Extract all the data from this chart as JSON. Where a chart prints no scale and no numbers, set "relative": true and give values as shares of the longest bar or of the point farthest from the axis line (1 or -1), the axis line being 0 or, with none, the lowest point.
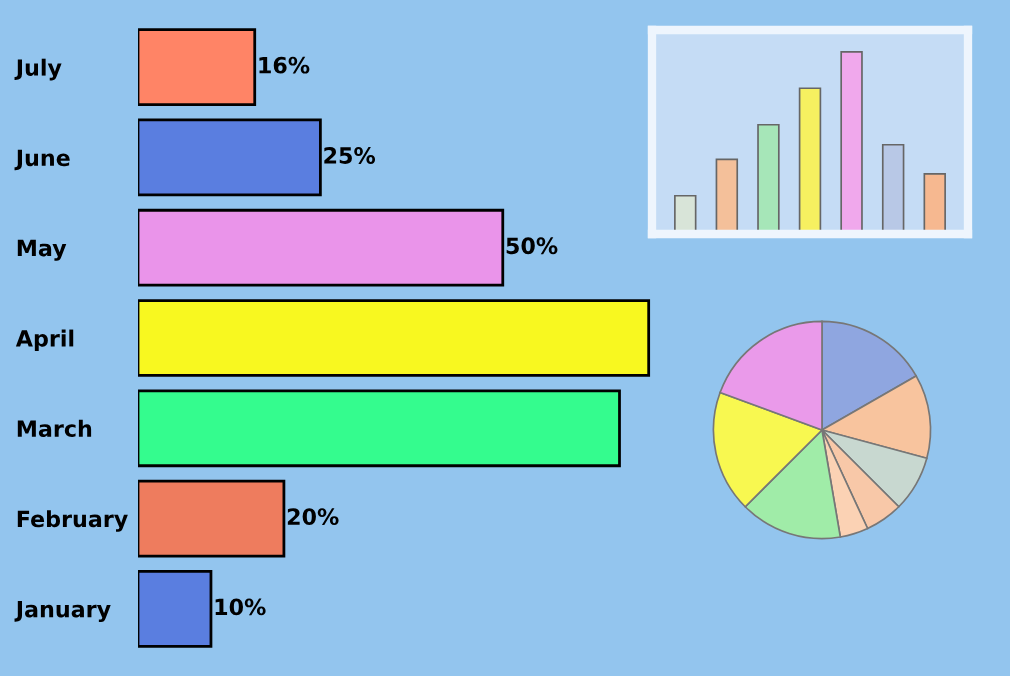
{
  "chart_data": [
    {
      "type": "bar",
      "orientation": "horizontal",
      "categories": [
        "July",
        "June",
        "May",
        "April",
        "March",
        "February",
        "January"
      ],
      "values": [
        16,
        25,
        50,
        70,
        66,
        20,
        10
      ],
      "colors": [
        "#ff8466",
        "#5a7ee0",
        "#ea94ea",
        "#f8f820",
        "#34fc8e",
        "#ee7c5e",
        "#5a7ee0"
      ],
      "value_labels": [
        "16%",
        "25%",
        "50%",
        null,
        null,
        "20%",
        "10%"
      ]
    },
    {
      "type": "bar",
      "relative": true,
      "categories": [
        null,
        null,
        null,
        null,
        null,
        null,
        null
      ],
      "values": [
        0.21,
        0.41,
        0.6,
        0.8,
        1,
        0.49,
        0.33
      ],
      "colors": [
        "#d8e4d8",
        "#f4c09a",
        "#a6e6b8",
        "#f6f060",
        "#f0a8ec",
        "#b8c8e6",
        "#f6b890"
      ]
    },
    {
      "type": "pie",
      "categories": [
        null,
        null,
        null,
        null,
        null,
        null,
        null,
        null
      ],
      "values": [
        16.7,
        12.5,
        8.3,
        5.6,
        4.2,
        15.2,
        18.1,
        19.4
      ],
      "colors": [
        "#8fa6e0",
        "#f8c49e",
        "#c8d8d0",
        "#f8c8a8",
        "#fbd2b4",
        "#a0eca8",
        "#f8f850",
        "#ea9aea"
      ]
    }
  ]
}
